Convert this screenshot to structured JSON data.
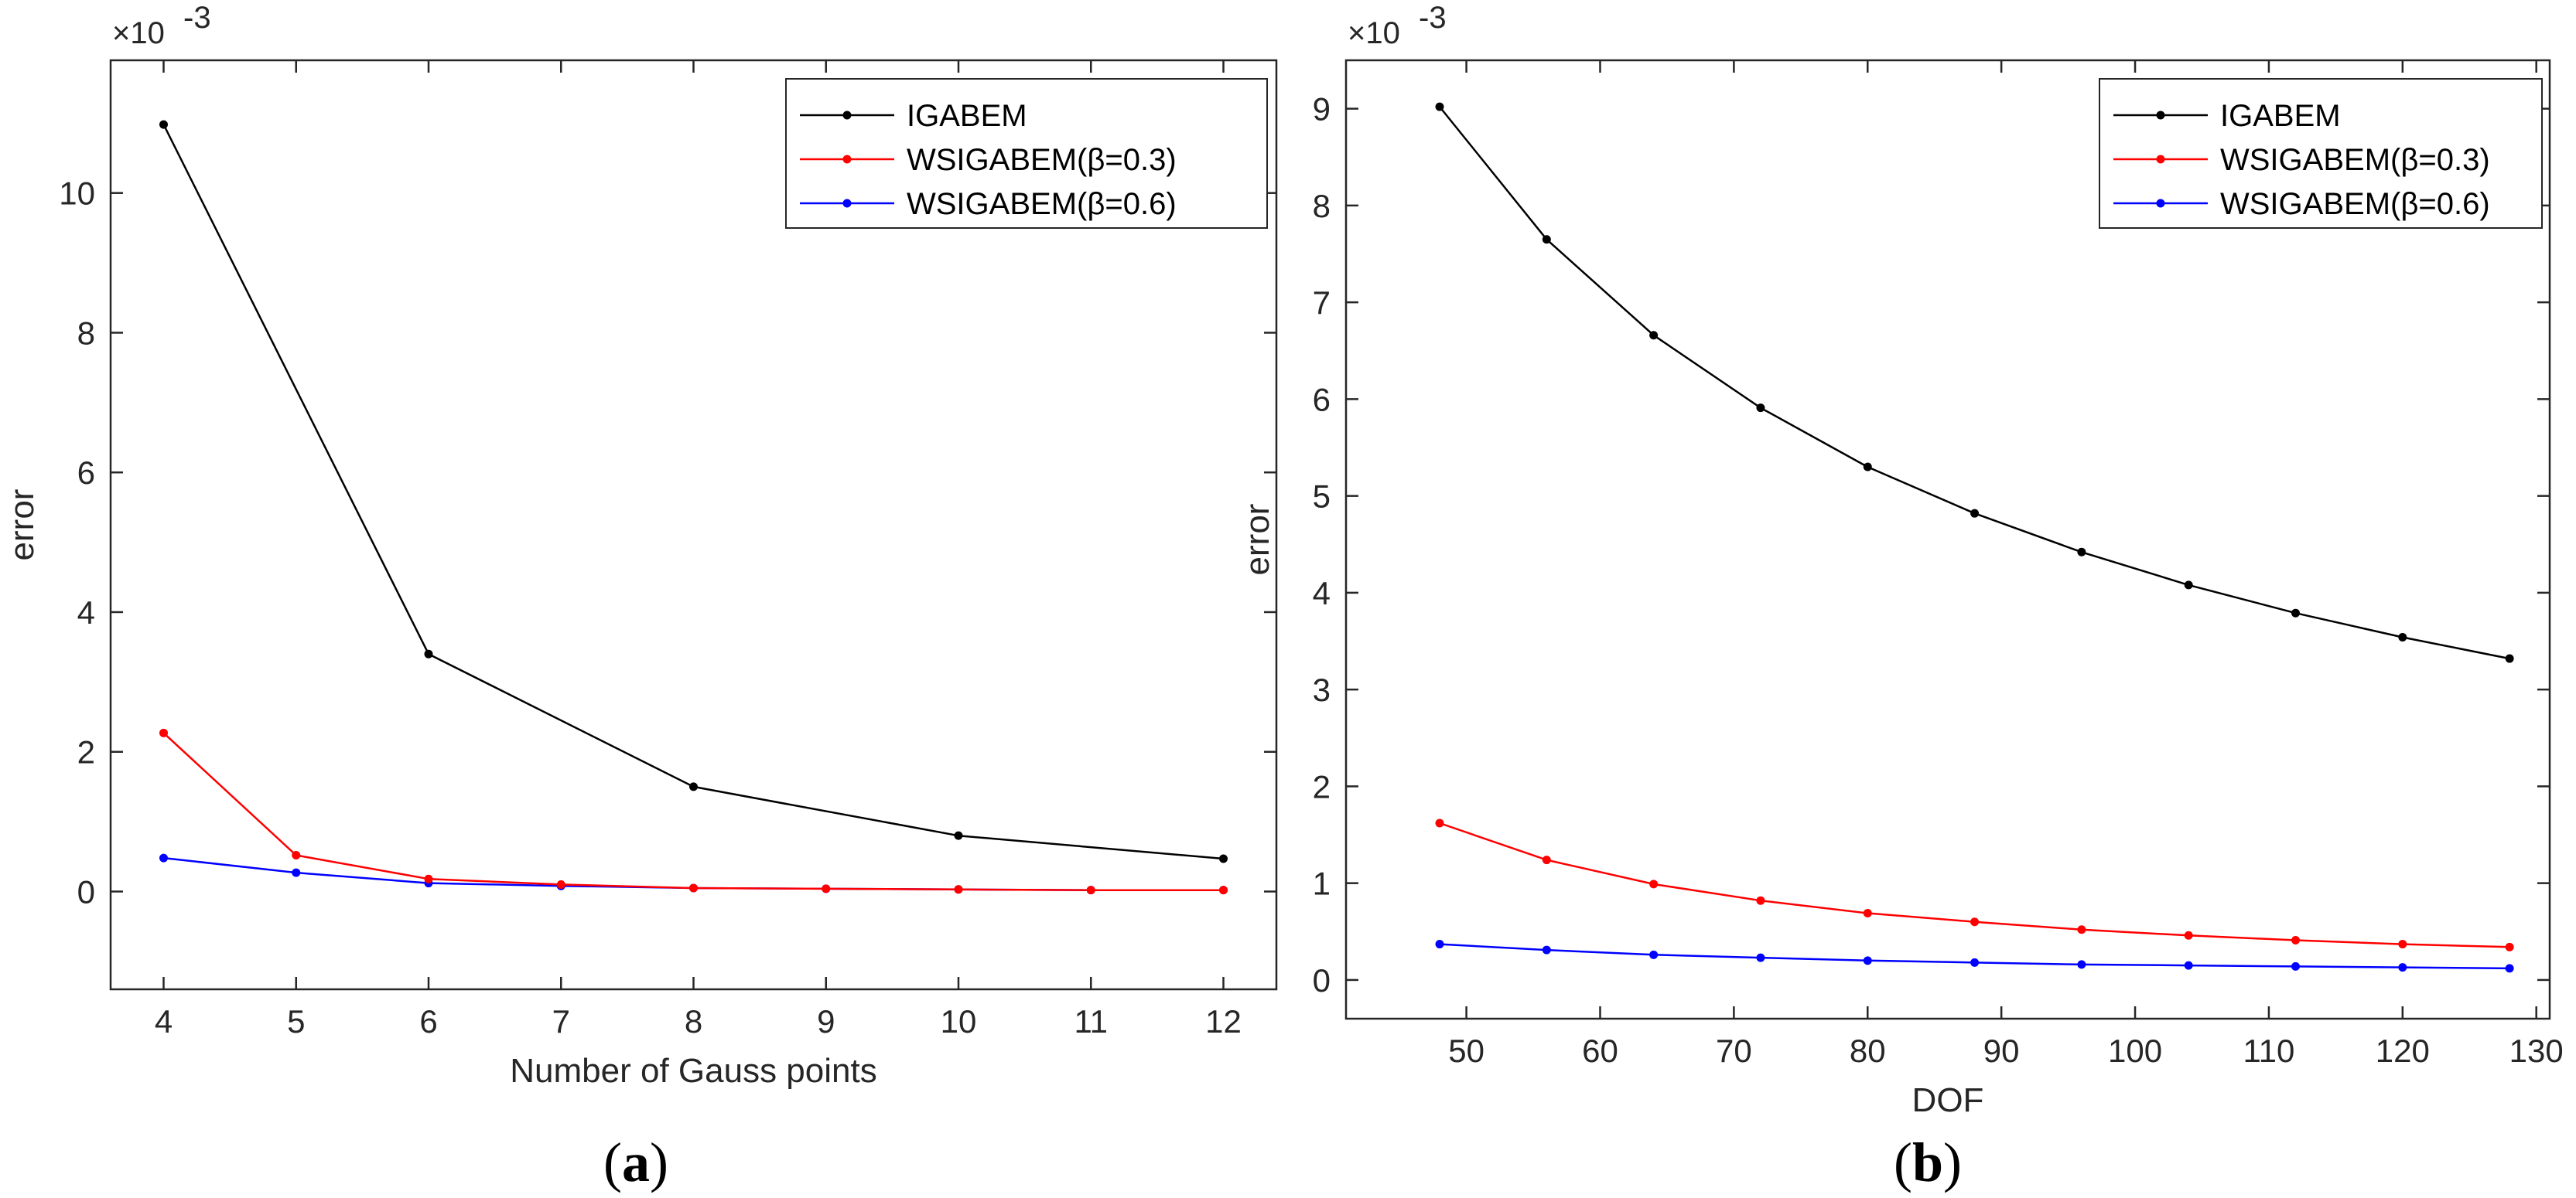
{
  "chart_data": [
    {
      "type": "line",
      "panel": "a",
      "caption_open": "(",
      "caption_letter": "a",
      "caption_close": ")",
      "xlabel": "Number of Gauss points",
      "ylabel": "error",
      "y_exponent_base": "×10",
      "y_exponent_power": "-3",
      "xlim": [
        3.6,
        12.4
      ],
      "ylim": [
        -1.4,
        11.9
      ],
      "xticks": [
        4,
        5,
        6,
        7,
        8,
        9,
        10,
        11,
        12
      ],
      "yticks": [
        0,
        2,
        4,
        6,
        8,
        10
      ],
      "grid": false,
      "legend_location": "top-right",
      "series": [
        {
          "name": "IGABEM",
          "color": "#000000",
          "x": [
            4,
            6,
            8,
            10,
            12
          ],
          "y": [
            10.98,
            3.4,
            1.5,
            0.8,
            0.47
          ]
        },
        {
          "name": "WSIGABEM(β=0.3)",
          "color": "#ff0000",
          "x": [
            4,
            5,
            6,
            7,
            8,
            9,
            10,
            11,
            12
          ],
          "y": [
            2.27,
            0.52,
            0.18,
            0.1,
            0.05,
            0.04,
            0.03,
            0.02,
            0.02
          ]
        },
        {
          "name": "WSIGABEM(β=0.6)",
          "color": "#0000ff",
          "x": [
            4,
            5,
            6,
            7,
            8,
            9,
            10,
            11,
            12
          ],
          "y": [
            0.48,
            0.27,
            0.12,
            0.08,
            0.05,
            0.04,
            0.03,
            0.02,
            0.02
          ]
        }
      ]
    },
    {
      "type": "line",
      "panel": "b",
      "caption_open": "(",
      "caption_letter": "b",
      "caption_close": ")",
      "xlabel": "DOF",
      "ylabel": "error",
      "y_exponent_base": "×10",
      "y_exponent_power": "-3",
      "xlim": [
        41,
        131
      ],
      "ylim": [
        -0.4,
        9.5
      ],
      "xticks": [
        50,
        60,
        70,
        80,
        90,
        100,
        110,
        120,
        130
      ],
      "yticks": [
        0,
        1,
        2,
        3,
        4,
        5,
        6,
        7,
        8,
        9
      ],
      "grid": false,
      "legend_location": "top-right",
      "series": [
        {
          "name": "IGABEM",
          "color": "#000000",
          "x": [
            48,
            56,
            64,
            72,
            80,
            88,
            96,
            104,
            112,
            120,
            128
          ],
          "y": [
            9.02,
            7.65,
            6.66,
            5.91,
            5.3,
            4.82,
            4.42,
            4.08,
            3.79,
            3.54,
            3.32
          ]
        },
        {
          "name": "WSIGABEM(β=0.3)",
          "color": "#ff0000",
          "x": [
            48,
            56,
            64,
            72,
            80,
            88,
            96,
            104,
            112,
            120,
            128
          ],
          "y": [
            1.62,
            1.24,
            0.99,
            0.82,
            0.69,
            0.6,
            0.52,
            0.46,
            0.41,
            0.37,
            0.34
          ]
        },
        {
          "name": "WSIGABEM(β=0.6)",
          "color": "#0000ff",
          "x": [
            48,
            56,
            64,
            72,
            80,
            88,
            96,
            104,
            112,
            120,
            128
          ],
          "y": [
            0.37,
            0.31,
            0.26,
            0.23,
            0.2,
            0.18,
            0.16,
            0.15,
            0.14,
            0.13,
            0.12
          ]
        }
      ]
    }
  ]
}
